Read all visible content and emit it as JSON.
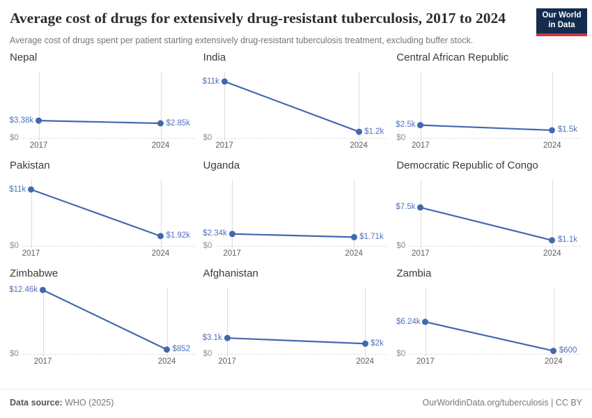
{
  "header": {
    "title": "Average cost of drugs for extensively drug-resistant tuberculosis, 2017 to 2024",
    "subtitle": "Average cost of drugs spent per patient starting extensively drug-resistant tuberculosis treatment, excluding buffer stock.",
    "logo": {
      "line1": "Our World",
      "line2": "in Data",
      "bg_color": "#132c4e",
      "accent_color": "#d0353f"
    }
  },
  "chart_data": {
    "type": "line",
    "layout": "small-multiples-3x3",
    "title": "Average cost of drugs for extensively drug-resistant tuberculosis, 2017 to 2024",
    "x": [
      2017,
      2024
    ],
    "x_tick_labels": [
      "2017",
      "2024"
    ],
    "zero_label": "$0",
    "ylim": [
      0,
      12900
    ],
    "grid": "vertical gridlines at each year, dashed zero baseline",
    "legend": "none",
    "series": [
      {
        "name": "Nepal",
        "values": [
          3380,
          2850
        ],
        "labels": [
          "$3.38k",
          "$2.85k"
        ]
      },
      {
        "name": "India",
        "values": [
          11000,
          1200
        ],
        "labels": [
          "$11k",
          "$1.2k"
        ]
      },
      {
        "name": "Central African Republic",
        "values": [
          2500,
          1500
        ],
        "labels": [
          "$2.5k",
          "$1.5k"
        ]
      },
      {
        "name": "Pakistan",
        "values": [
          11000,
          1920
        ],
        "labels": [
          "$11k",
          "$1.92k"
        ]
      },
      {
        "name": "Uganda",
        "values": [
          2340,
          1710
        ],
        "labels": [
          "$2.34k",
          "$1.71k"
        ]
      },
      {
        "name": "Democratic Republic of Congo",
        "values": [
          7500,
          1100
        ],
        "labels": [
          "$7.5k",
          "$1.1k"
        ]
      },
      {
        "name": "Zimbabwe",
        "values": [
          12460,
          852
        ],
        "labels": [
          "$12.46k",
          "$852"
        ]
      },
      {
        "name": "Afghanistan",
        "values": [
          3100,
          2000
        ],
        "labels": [
          "$3.1k",
          "$2k"
        ]
      },
      {
        "name": "Zambia",
        "values": [
          6240,
          600
        ],
        "labels": [
          "$6.24k",
          "$600"
        ]
      }
    ],
    "colors": {
      "line": "#4268ae",
      "point": "#4268ae",
      "value_label": "#4f72bb",
      "gridline": "#dcdcdc"
    }
  },
  "footer": {
    "source_label": "Data source:",
    "source_value": " WHO (2025)",
    "url_text": "OurWorldinData.org/tuberculosis",
    "separator": " | ",
    "license_text": "CC BY"
  }
}
